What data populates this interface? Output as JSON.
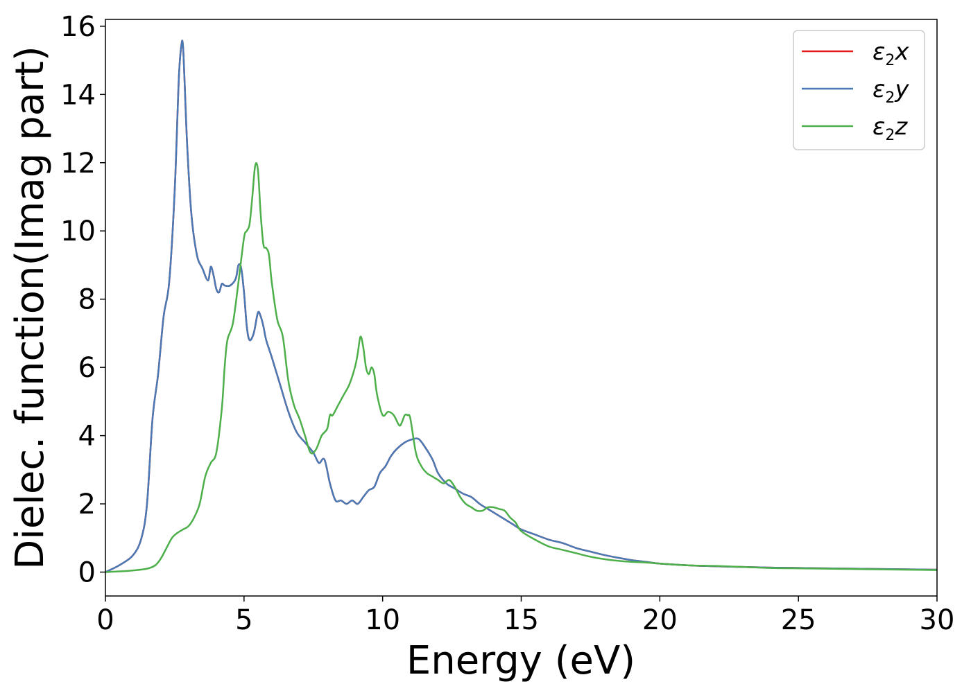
{
  "chart_data": {
    "type": "line",
    "title": "",
    "xlabel": "Energy (eV)",
    "ylabel": "Dielec. function(Imag part)",
    "xlim": [
      0,
      30
    ],
    "ylim": [
      -0.7,
      16.2
    ],
    "xticks": [
      0,
      5,
      10,
      15,
      20,
      25,
      30
    ],
    "yticks": [
      0,
      2,
      4,
      6,
      8,
      10,
      12,
      14,
      16
    ],
    "grid": false,
    "legend_placement": "top-right",
    "series": [
      {
        "name": "ε2x",
        "legend_base": "ε",
        "legend_sub": "2",
        "legend_var": "x",
        "color": "#e41a1c",
        "x": [
          0,
          0.5,
          1.0,
          1.3,
          1.5,
          1.7,
          1.9,
          2.1,
          2.3,
          2.5,
          2.65,
          2.75,
          2.8,
          2.85,
          2.95,
          3.1,
          3.3,
          3.5,
          3.7,
          3.8,
          3.9,
          4.0,
          4.1,
          4.2,
          4.3,
          4.5,
          4.7,
          4.8,
          4.9,
          5.0,
          5.1,
          5.2,
          5.35,
          5.5,
          5.6,
          5.7,
          5.8,
          6.0,
          6.3,
          6.6,
          6.9,
          7.2,
          7.5,
          7.7,
          7.9,
          8.1,
          8.3,
          8.5,
          8.7,
          8.9,
          9.1,
          9.3,
          9.5,
          9.7,
          9.9,
          10.1,
          10.3,
          10.5,
          10.8,
          11.1,
          11.3,
          11.5,
          11.8,
          12.0,
          12.3,
          12.6,
          12.9,
          13.2,
          13.5,
          13.8,
          14.1,
          14.4,
          14.7,
          15.0,
          15.5,
          16.0,
          16.5,
          17.0,
          17.5,
          18.0,
          18.5,
          19.0,
          19.5,
          20.0,
          21.0,
          22.0,
          23.0,
          24.0,
          25.0,
          26.0,
          27.0,
          28.0,
          29.0,
          30.0
        ],
        "y": [
          0,
          0.2,
          0.5,
          1.0,
          2.0,
          4.5,
          5.8,
          7.5,
          8.5,
          11.2,
          14.5,
          15.5,
          15.4,
          14.5,
          12.5,
          10.5,
          9.3,
          8.9,
          8.55,
          8.95,
          8.7,
          8.3,
          8.2,
          8.45,
          8.4,
          8.4,
          8.6,
          9.0,
          8.9,
          8.2,
          7.2,
          6.8,
          7.0,
          7.6,
          7.5,
          7.2,
          6.8,
          6.3,
          5.5,
          4.7,
          4.1,
          3.8,
          3.5,
          3.2,
          3.3,
          2.6,
          2.1,
          2.1,
          2.0,
          2.1,
          2.0,
          2.2,
          2.4,
          2.5,
          2.9,
          3.1,
          3.4,
          3.6,
          3.8,
          3.9,
          3.9,
          3.7,
          3.3,
          2.9,
          2.6,
          2.45,
          2.3,
          2.2,
          2.0,
          1.85,
          1.7,
          1.55,
          1.4,
          1.25,
          1.1,
          0.95,
          0.85,
          0.7,
          0.6,
          0.5,
          0.42,
          0.35,
          0.3,
          0.25,
          0.2,
          0.17,
          0.15,
          0.13,
          0.12,
          0.11,
          0.1,
          0.09,
          0.08,
          0.07
        ]
      },
      {
        "name": "ε2y",
        "legend_base": "ε",
        "legend_sub": "2",
        "legend_var": "y",
        "color": "#4a7ab5",
        "x": [
          0,
          0.5,
          1.0,
          1.3,
          1.5,
          1.7,
          1.9,
          2.1,
          2.3,
          2.5,
          2.65,
          2.75,
          2.8,
          2.85,
          2.95,
          3.1,
          3.3,
          3.5,
          3.7,
          3.8,
          3.9,
          4.0,
          4.1,
          4.2,
          4.3,
          4.5,
          4.7,
          4.8,
          4.9,
          5.0,
          5.1,
          5.2,
          5.35,
          5.5,
          5.6,
          5.7,
          5.8,
          6.0,
          6.3,
          6.6,
          6.9,
          7.2,
          7.5,
          7.7,
          7.9,
          8.1,
          8.3,
          8.5,
          8.7,
          8.9,
          9.1,
          9.3,
          9.5,
          9.7,
          9.9,
          10.1,
          10.3,
          10.5,
          10.8,
          11.1,
          11.3,
          11.5,
          11.8,
          12.0,
          12.3,
          12.6,
          12.9,
          13.2,
          13.5,
          13.8,
          14.1,
          14.4,
          14.7,
          15.0,
          15.5,
          16.0,
          16.5,
          17.0,
          17.5,
          18.0,
          18.5,
          19.0,
          19.5,
          20.0,
          21.0,
          22.0,
          23.0,
          24.0,
          25.0,
          26.0,
          27.0,
          28.0,
          29.0,
          30.0
        ],
        "y": [
          0,
          0.2,
          0.5,
          1.0,
          2.0,
          4.5,
          5.8,
          7.5,
          8.5,
          11.2,
          14.5,
          15.5,
          15.4,
          14.5,
          12.5,
          10.5,
          9.3,
          8.9,
          8.55,
          8.95,
          8.7,
          8.3,
          8.2,
          8.45,
          8.4,
          8.4,
          8.6,
          9.0,
          8.9,
          8.2,
          7.2,
          6.8,
          7.0,
          7.6,
          7.5,
          7.2,
          6.8,
          6.3,
          5.5,
          4.7,
          4.1,
          3.8,
          3.5,
          3.2,
          3.3,
          2.6,
          2.1,
          2.1,
          2.0,
          2.1,
          2.0,
          2.2,
          2.4,
          2.5,
          2.9,
          3.1,
          3.4,
          3.6,
          3.8,
          3.9,
          3.9,
          3.7,
          3.3,
          2.9,
          2.6,
          2.45,
          2.3,
          2.2,
          2.0,
          1.85,
          1.7,
          1.55,
          1.4,
          1.25,
          1.1,
          0.95,
          0.85,
          0.7,
          0.6,
          0.5,
          0.42,
          0.35,
          0.3,
          0.25,
          0.2,
          0.17,
          0.15,
          0.13,
          0.12,
          0.11,
          0.1,
          0.09,
          0.08,
          0.07
        ]
      },
      {
        "name": "ε2z",
        "legend_base": "ε",
        "legend_sub": "2",
        "legend_var": "z",
        "color": "#4daf4a",
        "x": [
          0,
          0.5,
          1.0,
          1.5,
          1.8,
          2.0,
          2.2,
          2.4,
          2.6,
          2.8,
          3.0,
          3.2,
          3.4,
          3.6,
          3.8,
          4.0,
          4.2,
          4.3,
          4.4,
          4.6,
          4.8,
          5.0,
          5.1,
          5.2,
          5.3,
          5.4,
          5.5,
          5.6,
          5.7,
          5.8,
          5.9,
          6.0,
          6.2,
          6.4,
          6.6,
          6.8,
          7.0,
          7.2,
          7.4,
          7.6,
          7.8,
          8.0,
          8.1,
          8.2,
          8.4,
          8.6,
          8.8,
          9.0,
          9.1,
          9.2,
          9.3,
          9.4,
          9.5,
          9.6,
          9.7,
          9.8,
          10.0,
          10.2,
          10.4,
          10.6,
          10.7,
          10.8,
          10.9,
          11.0,
          11.2,
          11.4,
          11.6,
          11.8,
          12.0,
          12.2,
          12.4,
          12.6,
          12.8,
          13.0,
          13.2,
          13.4,
          13.6,
          13.8,
          14.0,
          14.2,
          14.4,
          14.6,
          14.8,
          15.0,
          15.5,
          16.0,
          16.5,
          17.0,
          17.5,
          18.0,
          18.5,
          19.0,
          19.5,
          20.0,
          21.0,
          22.0,
          23.0,
          24.0,
          25.0,
          26.0,
          27.0,
          28.0,
          29.0,
          30.0
        ],
        "y": [
          0,
          0.02,
          0.05,
          0.1,
          0.2,
          0.4,
          0.7,
          1.0,
          1.15,
          1.25,
          1.35,
          1.6,
          2.0,
          2.8,
          3.2,
          3.5,
          4.8,
          6.0,
          6.8,
          7.3,
          8.5,
          9.8,
          10.0,
          10.2,
          11.0,
          11.9,
          11.8,
          10.5,
          9.6,
          9.5,
          9.3,
          8.5,
          7.4,
          6.9,
          5.6,
          4.9,
          4.5,
          4.0,
          3.5,
          3.6,
          4.0,
          4.2,
          4.6,
          4.6,
          4.9,
          5.2,
          5.5,
          6.0,
          6.4,
          6.9,
          6.6,
          6.0,
          5.8,
          6.0,
          5.8,
          5.2,
          4.6,
          4.7,
          4.6,
          4.3,
          4.4,
          4.6,
          4.6,
          4.5,
          3.5,
          3.1,
          2.9,
          2.8,
          2.7,
          2.6,
          2.7,
          2.5,
          2.2,
          2.0,
          1.9,
          1.8,
          1.8,
          1.9,
          1.9,
          1.85,
          1.8,
          1.6,
          1.45,
          1.2,
          0.95,
          0.75,
          0.65,
          0.55,
          0.45,
          0.38,
          0.33,
          0.3,
          0.28,
          0.25,
          0.2,
          0.18,
          0.15,
          0.12,
          0.11,
          0.1,
          0.09,
          0.08,
          0.07,
          0.06
        ]
      }
    ]
  }
}
